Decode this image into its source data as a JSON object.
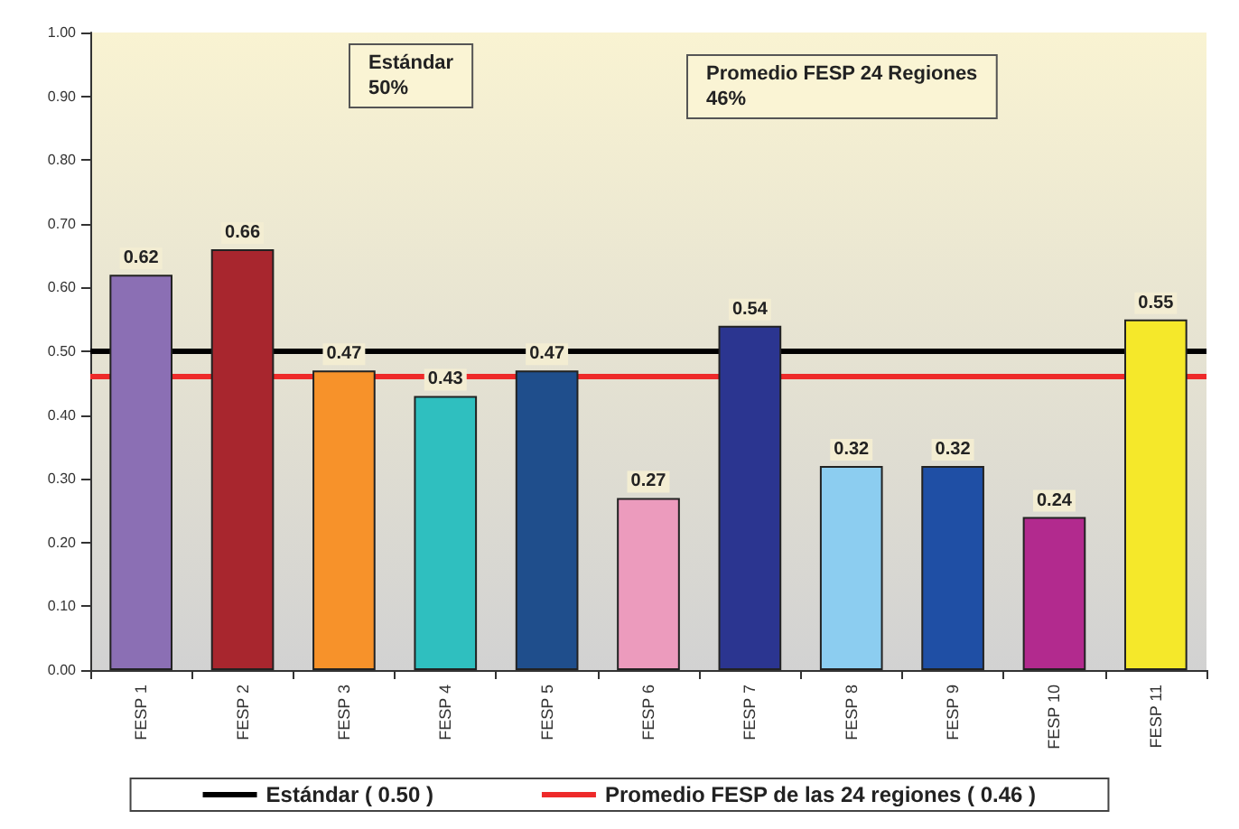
{
  "chart_data": {
    "type": "bar",
    "categories": [
      "FESP 1",
      "FESP 2",
      "FESP 3",
      "FESP 4",
      "FESP 5",
      "FESP 6",
      "FESP 7",
      "FESP 8",
      "FESP 9",
      "FESP 10",
      "FESP 11"
    ],
    "values": [
      0.62,
      0.66,
      0.47,
      0.43,
      0.47,
      0.27,
      0.54,
      0.32,
      0.32,
      0.24,
      0.55
    ],
    "colors": [
      "#8b6fb4",
      "#a8262e",
      "#f7922a",
      "#2fbfbf",
      "#1f4e8c",
      "#ec9bbd",
      "#2b3590",
      "#8ccdf0",
      "#1f4fa5",
      "#b22a8e",
      "#f5e82a"
    ],
    "data_labels": true,
    "ylim": [
      0,
      1
    ],
    "yticks": [
      {
        "value": 0,
        "label": "0.00"
      },
      {
        "value": 0.1,
        "label": "0.10"
      },
      {
        "value": 0.2,
        "label": "0.20"
      },
      {
        "value": 0.3,
        "label": "0.30"
      },
      {
        "value": 0.4,
        "label": "0.40"
      },
      {
        "value": 0.5,
        "label": "0.50"
      },
      {
        "value": 0.6,
        "label": "0.60"
      },
      {
        "value": 0.7,
        "label": "0.70"
      },
      {
        "value": 0.8,
        "label": "0.80"
      },
      {
        "value": 0.9,
        "label": "0.90"
      },
      {
        "value": 1,
        "label": "1.00"
      }
    ],
    "ref_lines": [
      {
        "axis": "y",
        "value": 0.5,
        "label": "Estándar ( 0.50 )",
        "color": "#000000"
      },
      {
        "axis": "y",
        "value": 0.46,
        "label": "Promedio FESP de las 24 regiones ( 0.46 )",
        "color": "#ee2a2a"
      }
    ],
    "annotations": [
      "Estándar\n50%",
      "Promedio FESP 24 Regiones\n46%"
    ],
    "legend": "bottom",
    "grid": false
  }
}
